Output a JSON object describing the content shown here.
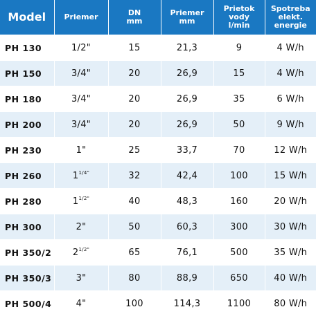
{
  "headers": {
    "model": "Model",
    "diameter": "Priemer",
    "dn": "DN\nmm",
    "diameter_mm": "Priemer\nmm",
    "flow": "Prietok\nvody\nl/min",
    "power": "Spotreba\nelekt.\nenergie"
  },
  "rows": [
    {
      "model": "PH 130",
      "diameter": "1/2\"",
      "dn": "15",
      "diameter_mm": "21,3",
      "flow": "9",
      "power": "4 W/h"
    },
    {
      "model": "PH 150",
      "diameter": "3/4\"",
      "dn": "20",
      "diameter_mm": "26,9",
      "flow": "15",
      "power": "4 W/h"
    },
    {
      "model": "PH 180",
      "diameter": "3/4\"",
      "dn": "20",
      "diameter_mm": "26,9",
      "flow": "35",
      "power": "6 W/h"
    },
    {
      "model": "PH 200",
      "diameter": "3/4\"",
      "dn": "20",
      "diameter_mm": "26,9",
      "flow": "50",
      "power": "9 W/h"
    },
    {
      "model": "PH 230",
      "diameter": "1\"",
      "dn": "25",
      "diameter_mm": "33,7",
      "flow": "70",
      "power": "12 W/h"
    },
    {
      "model": "PH 260",
      "diameter": "1",
      "diameter_sup": "1/4\"",
      "dn": "32",
      "diameter_mm": "42,4",
      "flow": "100",
      "power": "15 W/h"
    },
    {
      "model": "PH 280",
      "diameter": "1",
      "diameter_sup": "1/2\"",
      "dn": "40",
      "diameter_mm": "48,3",
      "flow": "160",
      "power": "20 W/h"
    },
    {
      "model": "PH 300",
      "diameter": "2\"",
      "dn": "50",
      "diameter_mm": "60,3",
      "flow": "300",
      "power": "30 W/h"
    },
    {
      "model": "PH 350/2",
      "diameter": "2",
      "diameter_sup": "1/2\"",
      "dn": "65",
      "diameter_mm": "76,1",
      "flow": "500",
      "power": "35 W/h"
    },
    {
      "model": "PH 350/3",
      "diameter": "3\"",
      "dn": "80",
      "diameter_mm": "88,9",
      "flow": "650",
      "power": "40 W/h"
    },
    {
      "model": "PH 500/4",
      "diameter": "4\"",
      "dn": "100",
      "diameter_mm": "114,3",
      "flow": "1100",
      "power": "80 W/h"
    }
  ]
}
